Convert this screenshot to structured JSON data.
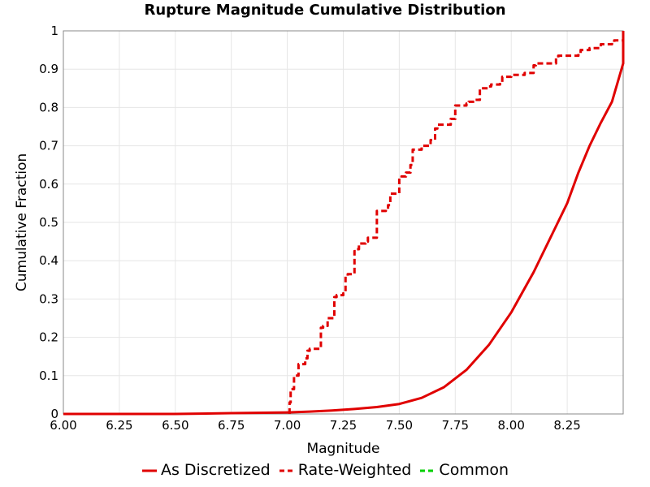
{
  "chart_data": {
    "type": "line",
    "title": "Rupture Magnitude Cumulative Distribution",
    "xlabel": "Magnitude",
    "ylabel": "Cumulative Fraction",
    "xlim": [
      6.0,
      8.5
    ],
    "ylim": [
      0,
      1
    ],
    "xticks": [
      "6.00",
      "6.25",
      "6.50",
      "6.75",
      "7.00",
      "7.25",
      "7.50",
      "7.75",
      "8.00",
      "8.25"
    ],
    "yticks": [
      "0",
      "0.1",
      "0.2",
      "0.3",
      "0.4",
      "0.5",
      "0.6",
      "0.7",
      "0.8",
      "0.9",
      "1"
    ],
    "grid": true,
    "legend_position": "bottom",
    "series": [
      {
        "name": "As Discretized",
        "style": "solid",
        "color": "#e00000",
        "x": [
          6.0,
          6.25,
          6.5,
          6.75,
          7.0,
          7.1,
          7.2,
          7.3,
          7.4,
          7.5,
          7.6,
          7.7,
          7.8,
          7.9,
          8.0,
          8.1,
          8.2,
          8.25,
          8.3,
          8.35,
          8.4,
          8.45,
          8.5,
          8.5
        ],
        "y": [
          0.0,
          0.0,
          0.0,
          0.002,
          0.004,
          0.006,
          0.009,
          0.013,
          0.018,
          0.026,
          0.042,
          0.07,
          0.115,
          0.18,
          0.265,
          0.37,
          0.49,
          0.55,
          0.63,
          0.7,
          0.76,
          0.815,
          0.915,
          1.0
        ]
      },
      {
        "name": "Rate-Weighted",
        "style": "dashed",
        "color": "#e00000",
        "x": [
          7.01,
          7.01,
          7.015,
          7.03,
          7.05,
          7.08,
          7.09,
          7.1,
          7.13,
          7.15,
          7.16,
          7.18,
          7.19,
          7.21,
          7.22,
          7.25,
          7.26,
          7.27,
          7.3,
          7.31,
          7.32,
          7.35,
          7.36,
          7.4,
          7.41,
          7.44,
          7.45,
          7.46,
          7.5,
          7.51,
          7.53,
          7.55,
          7.56,
          7.6,
          7.61,
          7.64,
          7.66,
          7.67,
          7.7,
          7.72,
          7.73,
          7.75,
          7.8,
          7.81,
          7.84,
          7.86,
          7.9,
          7.91,
          7.95,
          7.96,
          8.0,
          8.01,
          8.06,
          8.1,
          8.11,
          8.15,
          8.2,
          8.21,
          8.25,
          8.3,
          8.31,
          8.35,
          8.39,
          8.4,
          8.45,
          8.46,
          8.5
        ],
        "y": [
          0.0,
          0.03,
          0.065,
          0.1,
          0.13,
          0.145,
          0.165,
          0.17,
          0.17,
          0.225,
          0.23,
          0.25,
          0.25,
          0.305,
          0.31,
          0.315,
          0.36,
          0.365,
          0.425,
          0.43,
          0.445,
          0.45,
          0.46,
          0.53,
          0.53,
          0.535,
          0.545,
          0.575,
          0.615,
          0.62,
          0.63,
          0.65,
          0.69,
          0.7,
          0.7,
          0.715,
          0.745,
          0.755,
          0.755,
          0.755,
          0.77,
          0.805,
          0.81,
          0.815,
          0.82,
          0.85,
          0.855,
          0.86,
          0.865,
          0.88,
          0.885,
          0.885,
          0.89,
          0.91,
          0.915,
          0.915,
          0.93,
          0.935,
          0.935,
          0.94,
          0.95,
          0.955,
          0.955,
          0.965,
          0.97,
          0.975,
          0.985
        ]
      },
      {
        "name": "Common",
        "style": "dashed",
        "color": "#00d000",
        "x": [],
        "y": []
      }
    ]
  }
}
